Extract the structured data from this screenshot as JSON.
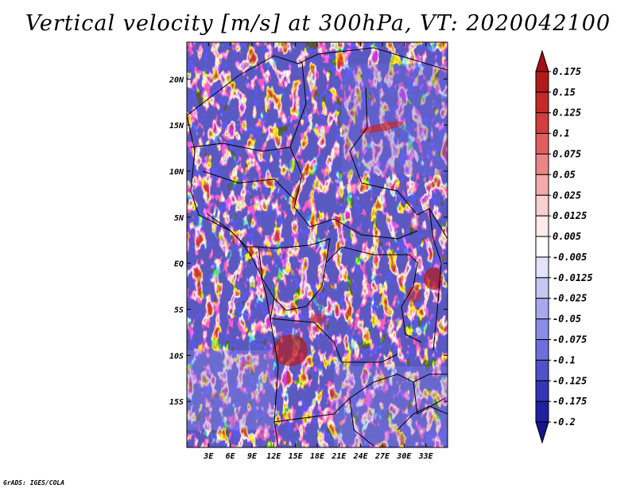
{
  "title": "Vertical velocity [m/s] at 300hPa, VT: 2020042100",
  "credit": "GrADS: IGES/COLA",
  "map": {
    "lon_range": [
      0,
      36
    ],
    "lat_range": [
      -20,
      24
    ],
    "lon_ticks": [
      "3E",
      "6E",
      "9E",
      "12E",
      "15E",
      "18E",
      "21E",
      "24E",
      "27E",
      "30E",
      "33E"
    ],
    "lat_ticks": [
      "20N",
      "15N",
      "10N",
      "5N",
      "EQ",
      "5S",
      "10S",
      "15S"
    ]
  },
  "colorbar": {
    "labels": [
      "0.175",
      "0.15",
      "0.125",
      "0.1",
      "0.075",
      "0.05",
      "0.025",
      "0.0125",
      "0.005",
      "-0.005",
      "-0.0125",
      "-0.025",
      "-0.05",
      "-0.075",
      "-0.1",
      "-0.125",
      "-0.175",
      "-0.2"
    ],
    "colors": [
      "#a50f15",
      "#b31b1b",
      "#c42a2a",
      "#d43d3d",
      "#e06060",
      "#ea8585",
      "#f3aaaa",
      "#f9cfcf",
      "#fdeaea",
      "#ffffff",
      "#e3e3fb",
      "#c6c6f5",
      "#a8a8f0",
      "#8b8be8",
      "#6e6edc",
      "#5151cc",
      "#3535b8",
      "#2020a0",
      "#16168a"
    ]
  }
}
